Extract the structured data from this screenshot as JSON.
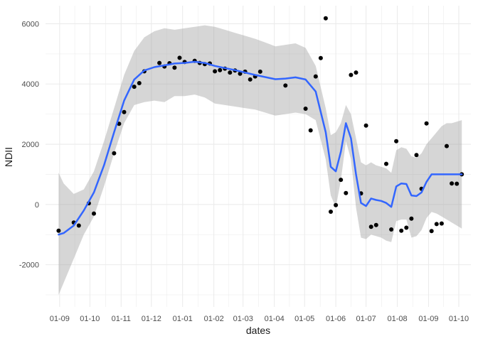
{
  "chart_data": {
    "type": "scatter",
    "xlabel": "dates",
    "ylabel": "NDII",
    "ylim": [
      -3400,
      6600
    ],
    "grid": true,
    "legend": "none",
    "x_ticks": [
      "01-09",
      "01-10",
      "01-11",
      "01-12",
      "01-01",
      "01-02",
      "01-03",
      "01-04",
      "01-05",
      "01-06",
      "01-07",
      "01-08",
      "01-09",
      "01-10"
    ],
    "y_ticks": [
      -2000,
      0,
      2000,
      4000,
      6000
    ],
    "colors": {
      "points": "#000000",
      "smooth_line": "#3366FF",
      "ribbon": "#999999",
      "grid": "#ebebeb"
    },
    "series": [
      {
        "kind": "points",
        "x": [
          "2019-08-31",
          "2019-09-15",
          "2019-09-20",
          "2019-09-30",
          "2019-10-05",
          "2019-10-25",
          "2019-10-30",
          "2019-11-04",
          "2019-11-14",
          "2019-11-19",
          "2019-11-24",
          "2019-12-09",
          "2019-12-14",
          "2019-12-19",
          "2019-12-24",
          "2019-12-29",
          "2020-01-03",
          "2020-01-13",
          "2020-01-18",
          "2020-01-23",
          "2020-01-28",
          "2020-02-02",
          "2020-02-07",
          "2020-02-12",
          "2020-02-17",
          "2020-02-22",
          "2020-02-27",
          "2020-03-03",
          "2020-03-08",
          "2020-03-13",
          "2020-03-18",
          "2020-04-12",
          "2020-05-02",
          "2020-05-07",
          "2020-05-12",
          "2020-05-17",
          "2020-05-22",
          "2020-05-27",
          "2020-06-01",
          "2020-06-06",
          "2020-06-11",
          "2020-06-16",
          "2020-06-21",
          "2020-06-26",
          "2020-07-01",
          "2020-07-06",
          "2020-07-11",
          "2020-07-21",
          "2020-07-26",
          "2020-07-31",
          "2020-08-05",
          "2020-08-10",
          "2020-08-15",
          "2020-08-20",
          "2020-08-25",
          "2020-08-30",
          "2020-09-04",
          "2020-09-09",
          "2020-09-14",
          "2020-09-19",
          "2020-09-24",
          "2020-09-29",
          "2020-10-04"
        ],
        "y": [
          -870,
          -600,
          -700,
          40,
          -300,
          1700,
          2680,
          3070,
          3910,
          4030,
          4420,
          4700,
          4580,
          4690,
          4540,
          4870,
          4730,
          4770,
          4700,
          4660,
          4680,
          4420,
          4460,
          4510,
          4380,
          4450,
          4340,
          4410,
          4150,
          4250,
          4410,
          3950,
          3180,
          2460,
          4250,
          4860,
          6180,
          -240,
          -20,
          820,
          380,
          4300,
          4380,
          370,
          2620,
          -740,
          -680,
          1350,
          -830,
          2100,
          -870,
          -770,
          -470,
          1640,
          520,
          2690,
          -880,
          -650,
          -630,
          1940,
          700,
          690,
          1000
        ]
      },
      {
        "kind": "smooth",
        "x": [
          "2019-08-31",
          "2019-09-05",
          "2019-09-15",
          "2019-09-25",
          "2019-10-05",
          "2019-10-15",
          "2019-10-25",
          "2019-11-04",
          "2019-11-14",
          "2019-11-24",
          "2019-12-04",
          "2019-12-14",
          "2019-12-24",
          "2020-01-03",
          "2020-01-13",
          "2020-01-23",
          "2020-02-02",
          "2020-02-12",
          "2020-02-22",
          "2020-03-03",
          "2020-03-13",
          "2020-03-23",
          "2020-04-02",
          "2020-04-12",
          "2020-04-22",
          "2020-05-02",
          "2020-05-12",
          "2020-05-22",
          "2020-05-27",
          "2020-06-01",
          "2020-06-06",
          "2020-06-11",
          "2020-06-16",
          "2020-06-21",
          "2020-06-26",
          "2020-07-01",
          "2020-07-06",
          "2020-07-11",
          "2020-07-16",
          "2020-07-21",
          "2020-07-26",
          "2020-07-31",
          "2020-08-05",
          "2020-08-10",
          "2020-08-15",
          "2020-08-20",
          "2020-08-25",
          "2020-08-30",
          "2020-09-04",
          "2020-09-09",
          "2020-09-14",
          "2020-09-19",
          "2020-09-24",
          "2020-09-29",
          "2020-10-04"
        ],
        "y": [
          -1000,
          -950,
          -700,
          -200,
          400,
          1300,
          2400,
          3450,
          4150,
          4450,
          4560,
          4620,
          4680,
          4700,
          4740,
          4700,
          4600,
          4530,
          4460,
          4380,
          4300,
          4230,
          4160,
          4180,
          4220,
          4150,
          3750,
          2400,
          1250,
          1100,
          1750,
          2700,
          2200,
          1000,
          50,
          -50,
          200,
          150,
          120,
          50,
          -80,
          600,
          700,
          680,
          300,
          280,
          400,
          750,
          1000,
          1000,
          1000,
          1000,
          1000,
          1000,
          1000
        ]
      },
      {
        "kind": "ribbon",
        "x": [
          "2019-08-31",
          "2019-09-05",
          "2019-09-15",
          "2019-09-25",
          "2019-10-05",
          "2019-10-15",
          "2019-10-25",
          "2019-11-04",
          "2019-11-14",
          "2019-11-24",
          "2019-12-04",
          "2019-12-14",
          "2019-12-24",
          "2020-01-03",
          "2020-01-13",
          "2020-01-23",
          "2020-02-02",
          "2020-02-12",
          "2020-02-22",
          "2020-03-03",
          "2020-03-13",
          "2020-03-23",
          "2020-04-02",
          "2020-04-12",
          "2020-04-22",
          "2020-05-02",
          "2020-05-12",
          "2020-05-22",
          "2020-05-27",
          "2020-06-01",
          "2020-06-06",
          "2020-06-11",
          "2020-06-16",
          "2020-06-21",
          "2020-06-26",
          "2020-07-01",
          "2020-07-06",
          "2020-07-11",
          "2020-07-16",
          "2020-07-21",
          "2020-07-26",
          "2020-07-31",
          "2020-08-05",
          "2020-08-10",
          "2020-08-15",
          "2020-08-20",
          "2020-08-25",
          "2020-08-30",
          "2020-09-04",
          "2020-09-09",
          "2020-09-14",
          "2020-09-19",
          "2020-09-24",
          "2020-09-29",
          "2020-10-04"
        ],
        "upper": [
          1050,
          700,
          350,
          500,
          1100,
          2100,
          3200,
          4300,
          5100,
          5550,
          5750,
          5850,
          5800,
          5850,
          5900,
          5950,
          5900,
          5800,
          5700,
          5600,
          5500,
          5380,
          5250,
          5300,
          5350,
          5200,
          4600,
          3200,
          2300,
          2400,
          2700,
          3300,
          3000,
          2200,
          1400,
          1300,
          1400,
          1300,
          1250,
          1200,
          1050,
          1800,
          1900,
          1850,
          1600,
          1550,
          1700,
          2000,
          2200,
          2400,
          2600,
          2700,
          2700,
          2750,
          2800
        ],
        "lower": [
          -3000,
          -2600,
          -1800,
          -1000,
          -400,
          600,
          1700,
          2700,
          3300,
          3400,
          3450,
          3400,
          3600,
          3600,
          3650,
          3550,
          3350,
          3300,
          3250,
          3200,
          3150,
          3050,
          2950,
          3000,
          3050,
          3000,
          2800,
          1500,
          300,
          -100,
          800,
          2100,
          1500,
          -100,
          -1100,
          -1150,
          -1000,
          -1050,
          -1100,
          -1200,
          -1250,
          -550,
          -500,
          -500,
          -1100,
          -1050,
          -850,
          -450,
          -250,
          -300,
          -400,
          -500,
          -600,
          -700,
          -800
        ]
      }
    ]
  }
}
